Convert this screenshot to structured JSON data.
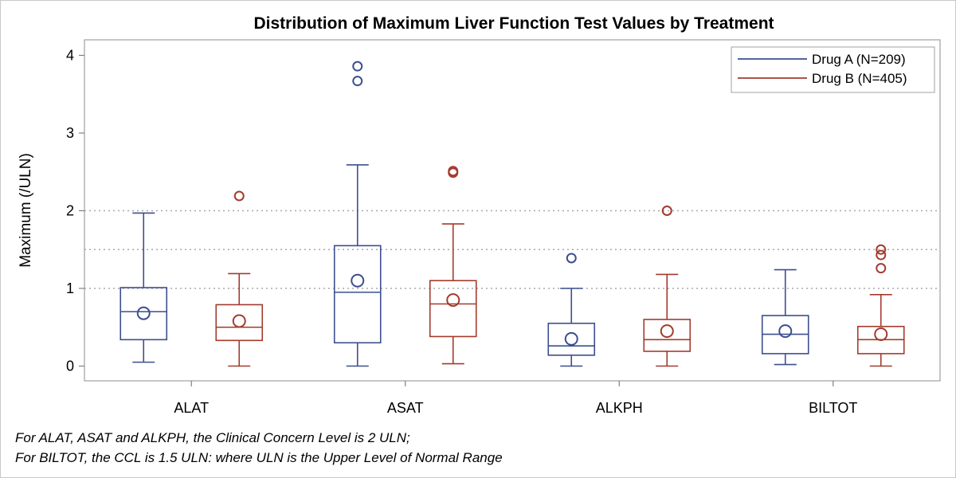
{
  "chart_data": {
    "type": "box",
    "title": "Distribution of Maximum Liver Function Test Values by Treatment",
    "xlabel": "",
    "ylabel": "Maximum (/ULN)",
    "categories": [
      "ALAT",
      "ASAT",
      "ALKPH",
      "BILTOT"
    ],
    "ylim": [
      0,
      4.2
    ],
    "yticks": [
      0,
      1,
      2,
      3,
      4
    ],
    "reference_lines": [
      1,
      1.5,
      2
    ],
    "legend_position": "top-right",
    "series": [
      {
        "name": "Drug A (N=209)",
        "color": "#3c4e8f",
        "boxes": [
          {
            "category": "ALAT",
            "whisker_low": 0.05,
            "q1": 0.34,
            "median": 0.7,
            "q3": 1.01,
            "whisker_high": 1.97,
            "mean": 0.68,
            "outliers": []
          },
          {
            "category": "ASAT",
            "whisker_low": 0.0,
            "q1": 0.3,
            "median": 0.95,
            "q3": 1.55,
            "whisker_high": 2.59,
            "mean": 1.1,
            "outliers": [
              3.67,
              3.86
            ]
          },
          {
            "category": "ALKPH",
            "whisker_low": 0.0,
            "q1": 0.14,
            "median": 0.26,
            "q3": 0.55,
            "whisker_high": 1.0,
            "mean": 0.35,
            "outliers": [
              1.39
            ]
          },
          {
            "category": "BILTOT",
            "whisker_low": 0.02,
            "q1": 0.16,
            "median": 0.41,
            "q3": 0.65,
            "whisker_high": 1.24,
            "mean": 0.45,
            "outliers": []
          }
        ]
      },
      {
        "name": "Drug B (N=405)",
        "color": "#a33b2e",
        "boxes": [
          {
            "category": "ALAT",
            "whisker_low": 0.0,
            "q1": 0.33,
            "median": 0.5,
            "q3": 0.79,
            "whisker_high": 1.19,
            "mean": 0.58,
            "outliers": [
              2.19
            ]
          },
          {
            "category": "ASAT",
            "whisker_low": 0.03,
            "q1": 0.38,
            "median": 0.8,
            "q3": 1.1,
            "whisker_high": 1.83,
            "mean": 0.85,
            "outliers": [
              2.49,
              2.51
            ]
          },
          {
            "category": "ALKPH",
            "whisker_low": 0.0,
            "q1": 0.19,
            "median": 0.34,
            "q3": 0.6,
            "whisker_high": 1.18,
            "mean": 0.45,
            "outliers": [
              2.0
            ]
          },
          {
            "category": "BILTOT",
            "whisker_low": 0.0,
            "q1": 0.16,
            "median": 0.34,
            "q3": 0.51,
            "whisker_high": 0.92,
            "mean": 0.41,
            "outliers": [
              1.26,
              1.43,
              1.5
            ]
          }
        ]
      }
    ]
  },
  "footnotes": {
    "line1": "For ALAT, ASAT and ALKPH, the Clinical Concern Level is 2 ULN;",
    "line2": "For BILTOT, the CCL is 1.5 ULN: where ULN is the Upper Level of Normal Range"
  }
}
